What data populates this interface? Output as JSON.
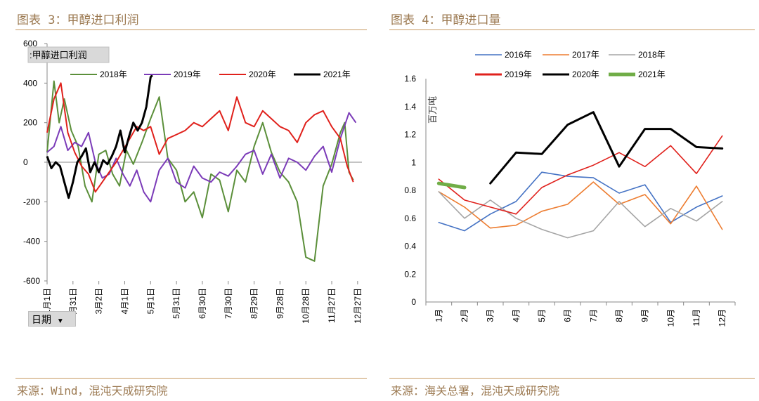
{
  "panels": {
    "left": {
      "title": "图表 3：甲醇进口利润",
      "source": "来源：Wind，混沌天成研究院"
    },
    "right": {
      "title": "图表 4：甲醇进口量",
      "source": "来源：海关总署，混沌天成研究院"
    }
  },
  "pivot": {
    "field_label": ":甲醇进口利润",
    "axis_button": "日期"
  },
  "chart_data": [
    {
      "type": "line",
      "title": "",
      "ylim": [
        -600,
        600
      ],
      "y_ticks": [
        600,
        400,
        200,
        0,
        -200,
        -400,
        -600
      ],
      "x_ticks": [
        "1月1日",
        "1月31日",
        "3月2日",
        "4月1日",
        "5月1日",
        "5月31日",
        "6月30日",
        "7月30日",
        "8月29日",
        "9月28日",
        "10月28日",
        "11月27日",
        "12月27日"
      ],
      "legend": [
        "2018年",
        "2019年",
        "2020年",
        "2021年"
      ],
      "legend_position": "top",
      "colors": {
        "2018年": "#5b8f3a",
        "2019年": "#7b3bb8",
        "2020年": "#e0211c",
        "2021年": "#000000"
      },
      "series": [
        {
          "name": "2018年",
          "x": [
            0,
            8,
            14,
            20,
            28,
            36,
            44,
            52,
            60,
            68,
            76,
            84,
            92,
            100,
            110,
            120,
            130,
            140,
            150,
            160,
            170,
            180,
            190,
            200,
            210,
            220,
            230,
            240,
            250,
            260,
            270,
            280,
            290,
            300,
            310,
            320,
            330,
            340,
            345,
            350,
            355
          ],
          "values": [
            50,
            410,
            200,
            320,
            160,
            80,
            -120,
            -200,
            40,
            60,
            -60,
            -120,
            60,
            -10,
            100,
            220,
            330,
            20,
            -40,
            -200,
            -150,
            -280,
            -60,
            -90,
            -250,
            -40,
            -100,
            80,
            200,
            50,
            -50,
            -100,
            -200,
            -480,
            -500,
            -120,
            -10,
            150,
            200,
            -50,
            -90
          ]
        },
        {
          "name": "2019年",
          "x": [
            0,
            8,
            16,
            24,
            32,
            40,
            48,
            56,
            64,
            72,
            80,
            88,
            96,
            104,
            112,
            120,
            130,
            140,
            150,
            160,
            170,
            180,
            190,
            200,
            210,
            220,
            230,
            240,
            250,
            260,
            270,
            280,
            290,
            300,
            310,
            320,
            330,
            340,
            350,
            358
          ],
          "values": [
            50,
            80,
            180,
            60,
            100,
            80,
            150,
            0,
            -80,
            -60,
            20,
            -60,
            -120,
            -40,
            -150,
            -200,
            -40,
            20,
            -100,
            -130,
            -20,
            -80,
            -100,
            -50,
            -70,
            -20,
            40,
            60,
            -60,
            40,
            -80,
            20,
            0,
            -40,
            30,
            80,
            -50,
            120,
            250,
            200
          ]
        },
        {
          "name": "2020年",
          "x": [
            0,
            8,
            16,
            24,
            32,
            40,
            48,
            56,
            64,
            72,
            80,
            88,
            96,
            104,
            112,
            120,
            130,
            140,
            150,
            160,
            170,
            180,
            190,
            200,
            210,
            220,
            230,
            240,
            250,
            260,
            270,
            280,
            290,
            300,
            310,
            320,
            330,
            340,
            348,
            355
          ],
          "values": [
            150,
            320,
            400,
            150,
            50,
            -20,
            -60,
            -150,
            -100,
            -50,
            0,
            60,
            120,
            180,
            160,
            180,
            40,
            120,
            140,
            160,
            200,
            180,
            220,
            260,
            160,
            330,
            200,
            180,
            260,
            220,
            180,
            160,
            100,
            200,
            240,
            260,
            180,
            120,
            -20,
            -100
          ]
        },
        {
          "name": "2021年",
          "x": [
            0,
            5,
            10,
            15,
            20,
            25,
            30,
            35,
            40,
            45,
            50,
            55,
            60,
            65,
            70,
            75,
            80,
            85,
            90,
            95,
            100,
            105,
            110,
            115,
            120,
            122
          ],
          "values": [
            30,
            -30,
            0,
            -20,
            -100,
            -180,
            -100,
            0,
            30,
            70,
            -50,
            0,
            -50,
            10,
            -10,
            30,
            80,
            160,
            50,
            130,
            200,
            160,
            200,
            280,
            430,
            440
          ]
        }
      ]
    },
    {
      "type": "line",
      "title": "",
      "ylabel": "百万吨",
      "ylim": [
        0,
        1.6
      ],
      "y_ticks": [
        0,
        0.2,
        0.4,
        0.6,
        0.8,
        1,
        1.2,
        1.4,
        1.6
      ],
      "categories": [
        "1月",
        "2月",
        "3月",
        "4月",
        "5月",
        "6月",
        "7月",
        "8月",
        "9月",
        "10月",
        "11月",
        "12月"
      ],
      "legend": [
        "2016年",
        "2017年",
        "2018年",
        "2019年",
        "2020年",
        "2021年"
      ],
      "legend_position": "top",
      "colors": {
        "2016年": "#4472c4",
        "2017年": "#ed7d31",
        "2018年": "#a5a5a5",
        "2019年": "#e0211c",
        "2020年": "#000000",
        "2021年": "#70ad47"
      },
      "series": [
        {
          "name": "2016年",
          "values": [
            0.57,
            0.51,
            0.63,
            0.72,
            0.93,
            0.9,
            0.89,
            0.78,
            0.84,
            0.57,
            0.68,
            0.76
          ]
        },
        {
          "name": "2017年",
          "values": [
            0.79,
            0.68,
            0.53,
            0.55,
            0.65,
            0.7,
            0.86,
            0.7,
            0.77,
            0.56,
            0.83,
            0.52
          ]
        },
        {
          "name": "2018年",
          "values": [
            0.79,
            0.6,
            0.73,
            0.6,
            0.52,
            0.46,
            0.51,
            0.72,
            0.54,
            0.67,
            0.58,
            0.72
          ]
        },
        {
          "name": "2019年",
          "values": [
            0.88,
            0.73,
            0.68,
            0.63,
            0.82,
            0.91,
            0.98,
            1.07,
            0.97,
            1.12,
            0.92,
            1.19
          ]
        },
        {
          "name": "2020年",
          "values": [
            null,
            null,
            0.85,
            1.07,
            1.06,
            1.27,
            1.36,
            0.97,
            1.24,
            1.24,
            1.11,
            1.1
          ]
        },
        {
          "name": "2021年",
          "values": [
            0.85,
            0.82,
            null,
            null,
            null,
            null,
            null,
            null,
            null,
            null,
            null,
            null
          ]
        }
      ]
    }
  ]
}
